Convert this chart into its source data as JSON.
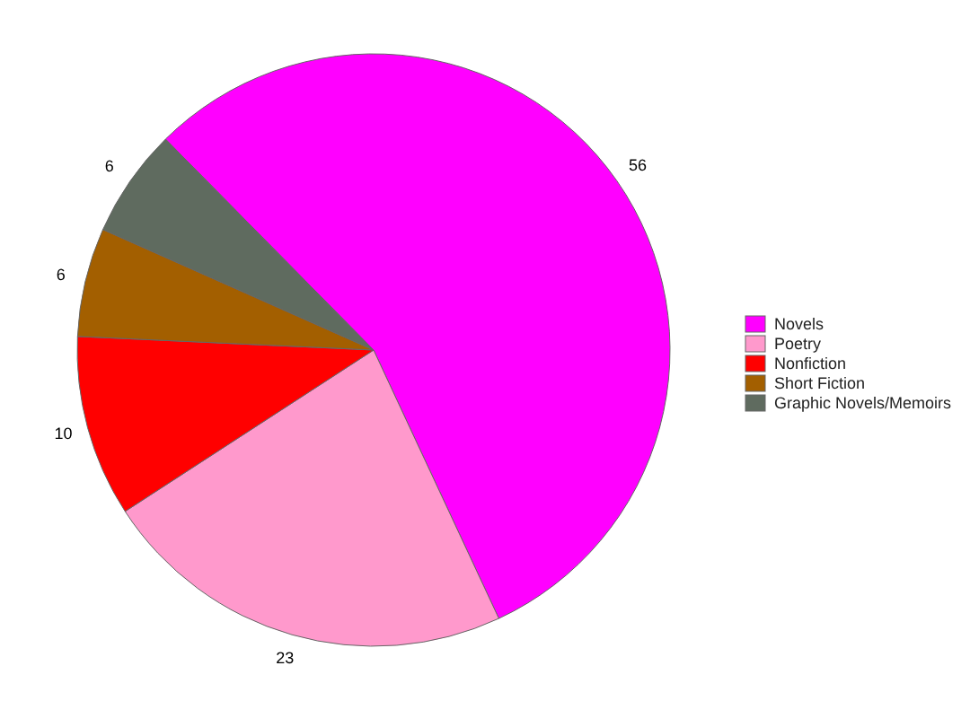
{
  "chart_data": {
    "type": "pie",
    "categories": [
      "Novels",
      "Poetry",
      "Nonfiction",
      "Short Fiction",
      "Graphic Novels/Memoirs"
    ],
    "values": [
      56,
      23,
      10,
      6,
      6
    ],
    "colors": [
      "#ff00ff",
      "#ff99cc",
      "#ff0000",
      "#a35f00",
      "#5f6b5f"
    ],
    "data_labels": true,
    "legend": "right"
  }
}
